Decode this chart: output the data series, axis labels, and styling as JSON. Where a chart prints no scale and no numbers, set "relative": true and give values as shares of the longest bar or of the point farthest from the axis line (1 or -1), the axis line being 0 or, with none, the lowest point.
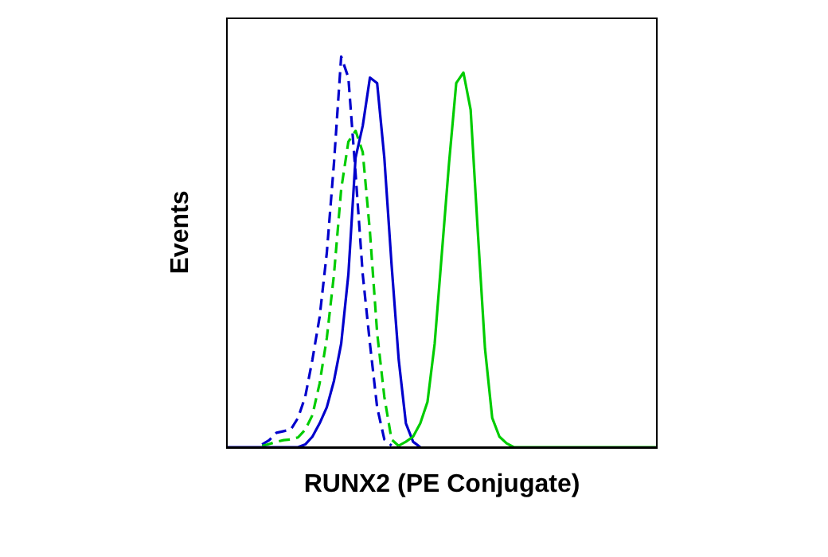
{
  "chart_data": {
    "type": "line",
    "xlabel": "RUNX2 (PE Conjugate)",
    "ylabel": "Events",
    "relative": true,
    "marker": "none",
    "categories": [
      null,
      null,
      null,
      null,
      null,
      null,
      null,
      null,
      null,
      null,
      null,
      null,
      null,
      null,
      null,
      null,
      null,
      null,
      null,
      null,
      null,
      null,
      null,
      null,
      null,
      null,
      null,
      null,
      null,
      null,
      null,
      null,
      null,
      null,
      null,
      null,
      null,
      null,
      null,
      null,
      null,
      null,
      null,
      null,
      null,
      null,
      null,
      null,
      null,
      null,
      null,
      null,
      null,
      null,
      null,
      null,
      null,
      null,
      null,
      null,
      null
    ],
    "series": [
      {
        "color": "#0000cc",
        "line_style": "dashed",
        "values": [
          null,
          null,
          null,
          null,
          null,
          0.007,
          0.018,
          0.037,
          0.041,
          0.045,
          0.075,
          0.129,
          0.224,
          0.333,
          0.497,
          0.728,
          1,
          0.946,
          0.701,
          0.442,
          0.265,
          0.102,
          0.02,
          0.004,
          null,
          null,
          null,
          null,
          null,
          null,
          null,
          null,
          null,
          null,
          null,
          null,
          null,
          null,
          null,
          null,
          null,
          null,
          null,
          null,
          null,
          null,
          null,
          null,
          null,
          null,
          null,
          null,
          null,
          null,
          null,
          null,
          null,
          null,
          null,
          null,
          null
        ]
      },
      {
        "color": "#00cc00",
        "line_style": "dashed",
        "values": [
          null,
          null,
          null,
          null,
          null,
          0.003,
          0.008,
          0.014,
          0.018,
          0.02,
          0.025,
          0.045,
          0.082,
          0.163,
          0.279,
          0.442,
          0.66,
          0.782,
          0.81,
          0.755,
          0.551,
          0.293,
          0.129,
          0.02,
          0.003,
          null,
          null,
          null,
          null,
          null,
          null,
          null,
          null,
          null,
          null,
          null,
          null,
          null,
          null,
          null,
          null,
          null,
          null,
          null,
          null,
          null,
          null,
          null,
          null,
          null,
          null,
          null,
          null,
          null,
          null,
          null,
          null,
          null,
          null,
          null,
          null
        ]
      },
      {
        "color": "#0000cc",
        "line_style": "solid",
        "values": [
          0,
          0,
          0,
          0,
          0,
          0,
          0,
          0,
          0,
          0,
          0,
          0.007,
          0.027,
          0.061,
          0.102,
          0.17,
          0.265,
          0.442,
          0.741,
          0.823,
          0.946,
          0.932,
          0.741,
          0.469,
          0.224,
          0.061,
          0.014,
          0,
          null,
          null,
          null,
          null,
          null,
          null,
          null,
          null,
          null,
          null,
          null,
          null,
          null,
          null,
          null,
          null,
          null,
          null,
          null,
          null,
          null,
          null,
          null,
          null,
          null,
          null,
          null,
          null,
          null,
          null,
          null,
          null,
          null
        ]
      },
      {
        "color": "#00cc00",
        "line_style": "solid",
        "values": [
          null,
          null,
          null,
          null,
          null,
          null,
          null,
          null,
          null,
          null,
          null,
          null,
          null,
          null,
          null,
          null,
          null,
          null,
          null,
          null,
          null,
          null,
          null,
          null,
          0.004,
          0.014,
          0.027,
          0.061,
          0.116,
          0.265,
          0.497,
          0.728,
          0.932,
          0.959,
          0.864,
          0.551,
          0.252,
          0.075,
          0.027,
          0.01,
          0,
          0,
          0,
          0,
          0,
          0,
          0,
          0,
          0,
          0,
          0,
          0,
          0,
          0,
          0,
          0,
          0,
          0,
          0,
          0,
          0
        ]
      }
    ]
  }
}
